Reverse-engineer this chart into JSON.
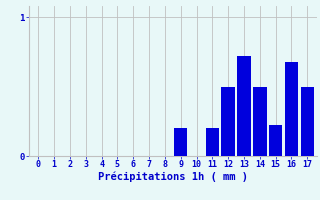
{
  "hours": [
    0,
    1,
    2,
    3,
    4,
    5,
    6,
    7,
    8,
    9,
    10,
    11,
    12,
    13,
    14,
    15,
    16,
    17
  ],
  "values": [
    0,
    0,
    0,
    0,
    0,
    0,
    0,
    0,
    0,
    0.2,
    0,
    0.2,
    0.5,
    0.72,
    0.5,
    0.22,
    0.68,
    0.5
  ],
  "bar_color": "#0000dd",
  "bg_color": "#e8f8f8",
  "grid_color": "#c0c0c0",
  "text_color": "#0000cc",
  "xlabel": "Précipitations 1h ( mm )",
  "ylim": [
    0,
    1.08
  ],
  "figsize": [
    3.2,
    2.0
  ],
  "dpi": 100,
  "tick_fontsize": 6.0,
  "label_fontsize": 7.5
}
